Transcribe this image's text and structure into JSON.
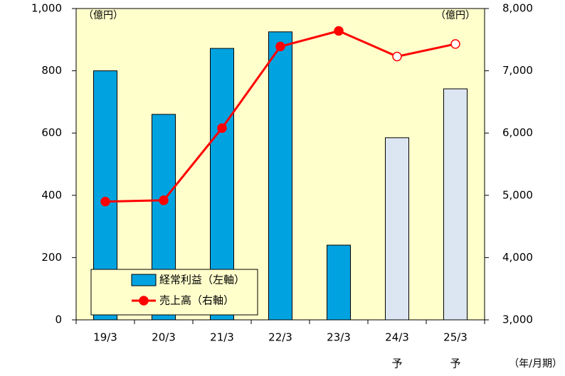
{
  "chart_data": {
    "type": "bar+line",
    "categories": [
      "19/3",
      "20/3",
      "21/3",
      "22/3",
      "23/3",
      "24/3",
      "25/3"
    ],
    "category_sublabels": [
      "",
      "",
      "",
      "",
      "",
      "予",
      "予"
    ],
    "series": [
      {
        "name": "経常利益（左軸）",
        "type": "bar",
        "axis": "left",
        "values": [
          800,
          660,
          872,
          925,
          240,
          585,
          742
        ],
        "forecast": [
          false,
          false,
          false,
          false,
          false,
          true,
          true
        ]
      },
      {
        "name": "売上高（右軸）",
        "type": "line",
        "axis": "right",
        "values": [
          4900,
          4920,
          6080,
          7390,
          7640,
          7230,
          7430
        ],
        "forecast": [
          false,
          false,
          false,
          false,
          false,
          true,
          true
        ]
      }
    ],
    "left_axis": {
      "unit_label": "（億円）",
      "ylim": [
        0,
        1000
      ],
      "ticks": [
        0,
        200,
        400,
        600,
        800,
        1000
      ],
      "tick_labels": [
        "0",
        "200",
        "400",
        "600",
        "800",
        "1,000"
      ]
    },
    "right_axis": {
      "unit_label": "（億円）",
      "ylim": [
        3000,
        8000
      ],
      "ticks": [
        3000,
        4000,
        5000,
        6000,
        7000,
        8000
      ],
      "tick_labels": [
        "3,000",
        "4,000",
        "5,000",
        "6,000",
        "7,000",
        "8,000"
      ]
    },
    "x_unit_label": "（年/月期）",
    "legend_position": "bottom-left",
    "grid": false
  },
  "colors": {
    "plot_background": "#ffffcc",
    "bar_actual": "#00a3e0",
    "bar_forecast": "#dce6f2",
    "line": "#ff0000",
    "marker_forecast_fill": "#ffffff"
  }
}
